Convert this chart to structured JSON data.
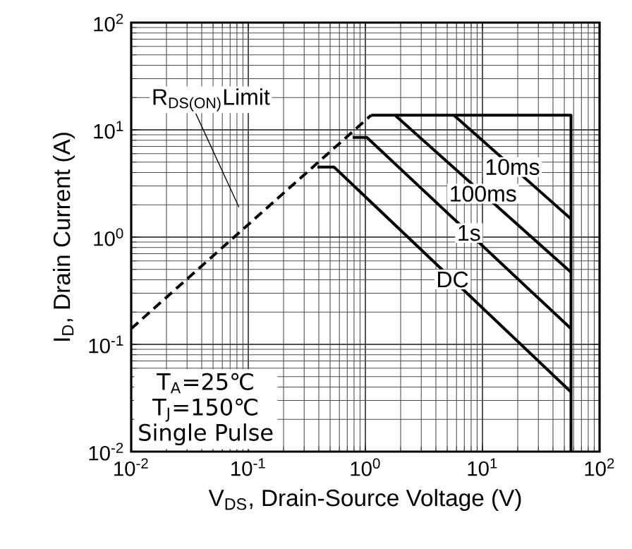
{
  "chart_data": {
    "type": "line",
    "xlabel": "V$_{DS}$, Drain-Source Voltage (V)",
    "ylabel": "I$_{D}$, Drain Current (A)",
    "log": "xy",
    "grid": true,
    "marker": "none",
    "xlim": [
      0.01,
      100
    ],
    "ylim": [
      0.01,
      100
    ],
    "xticks": [
      {
        "value": 0.01,
        "label": "10$^{-2}$"
      },
      {
        "value": 0.1,
        "label": "10$^{-1}$"
      },
      {
        "value": 1,
        "label": "10$^{0}$"
      },
      {
        "value": 10,
        "label": "10$^{1}$"
      },
      {
        "value": 100,
        "label": "10$^{2}$"
      }
    ],
    "yticks": [
      {
        "value": 0.01,
        "label": "10$^{-2}$"
      },
      {
        "value": 0.1,
        "label": "10$^{-1}$"
      },
      {
        "value": 1,
        "label": "10$^{0}$"
      },
      {
        "value": 10,
        "label": "10$^{1}$"
      },
      {
        "value": 100,
        "label": "10$^{2}$"
      }
    ],
    "series": [
      {
        "color": "#000000",
        "line_style": "dashed",
        "x": [
          0.01,
          1.12
        ],
        "values": [
          0.14,
          13.7
        ]
      },
      {
        "name": "10ms",
        "color": "#000000",
        "line_style": "solid",
        "x": [
          5.7,
          57
        ],
        "values": [
          13.7,
          1.48
        ]
      },
      {
        "name": "100ms",
        "color": "#000000",
        "line_style": "solid",
        "x": [
          1.12,
          1.79,
          57
        ],
        "values": [
          13.7,
          13.7,
          0.47
        ]
      },
      {
        "name": "1s",
        "color": "#000000",
        "line_style": "solid",
        "x": [
          0.78,
          1.03,
          57
        ],
        "values": [
          8.5,
          8.5,
          0.14
        ]
      },
      {
        "name": "DC",
        "color": "#000000",
        "line_style": "solid",
        "x": [
          0.39,
          0.54,
          57
        ],
        "values": [
          4.5,
          4.5,
          0.036
        ]
      },
      {
        "color": "#000000",
        "line_style": "solid",
        "x": [
          1.79,
          5.7,
          57,
          57
        ],
        "values": [
          13.7,
          13.7,
          13.7,
          0.01
        ]
      }
    ],
    "annotations": [
      "R$_{DS(ON)}$Limit",
      "T$_{A}$=25℃",
      "T$_{J}$=150℃",
      "Single Pulse"
    ]
  }
}
